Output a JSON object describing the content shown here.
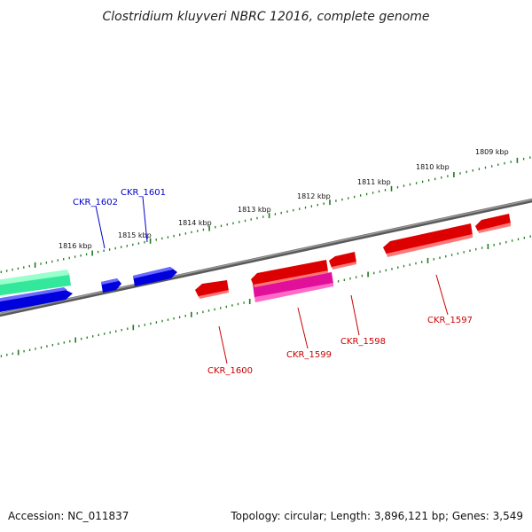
{
  "title": "Clostridium kluyveri NBRC 12016, complete genome",
  "footer": {
    "accession": "Accession: NC_011837",
    "summary": "Topology: circular; Length: 3,896,121 bp; Genes: 3,549"
  },
  "colors": {
    "backbone": "#808080",
    "tick": "#1f7a1f",
    "forward_cds": "#ff0000",
    "reverse_cds": "#0000ff",
    "rna": "#ff1493",
    "other_feature": "#33ff99",
    "label_forward": "#cc0000",
    "label_reverse": "#0000cc"
  },
  "scale": {
    "unit": "kbp",
    "labels": [
      "1809 kbp",
      "1810 kbp",
      "1811 kbp",
      "1812 kbp",
      "1813 kbp",
      "1814 kbp",
      "1815 kbp",
      "1816 kbp"
    ]
  },
  "genes": [
    {
      "id": "CKR_1597",
      "strand": "forward"
    },
    {
      "id": "CKR_1598",
      "strand": "forward"
    },
    {
      "id": "CKR_1599",
      "strand": "forward"
    },
    {
      "id": "CKR_1600",
      "strand": "forward"
    },
    {
      "id": "CKR_1601",
      "strand": "reverse"
    },
    {
      "id": "CKR_1602",
      "strand": "reverse"
    }
  ]
}
